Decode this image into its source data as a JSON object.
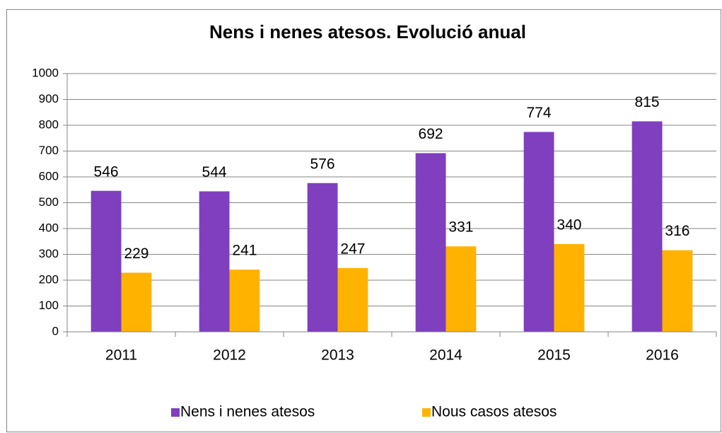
{
  "chart_data": {
    "type": "bar",
    "title": "Nens i nenes atesos. Evolució anual",
    "categories": [
      "2011",
      "2012",
      "2013",
      "2014",
      "2015",
      "2016"
    ],
    "series": [
      {
        "name": "Nens i nenes atesos",
        "color": "#7f3fbf",
        "values": [
          546,
          544,
          576,
          692,
          774,
          815
        ]
      },
      {
        "name": "Nous casos atesos",
        "color": "#ffb300",
        "values": [
          229,
          241,
          247,
          331,
          340,
          316
        ]
      }
    ],
    "ylim": [
      0,
      1000
    ],
    "yticks": [
      0,
      100,
      200,
      300,
      400,
      500,
      600,
      700,
      800,
      900,
      1000
    ],
    "grid": true,
    "legend": "bottom"
  }
}
